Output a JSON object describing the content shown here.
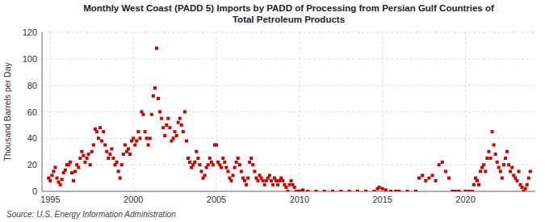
{
  "chart_data": {
    "type": "scatter",
    "title": "Monthly West Coast (PADD 5) Imports by PADD of Processing from Persian Gulf Countries of\nTotal Petroleum Products",
    "y_label": "Thousand Barrels per Day",
    "annotations": [
      "Source: U.S. Energy Information Administration"
    ],
    "color": "#cc0000",
    "marker": "square",
    "grid": true,
    "xlim": [
      1994.5,
      2024.2
    ],
    "ylim": [
      0,
      120
    ],
    "xticks": [
      1995,
      2000,
      2005,
      2010,
      2015,
      2020
    ],
    "yticks": [
      0,
      20,
      40,
      60,
      80,
      100,
      120
    ],
    "x": [
      1994.9,
      1995.0,
      1995.1,
      1995.2,
      1995.3,
      1995.4,
      1995.5,
      1995.6,
      1995.7,
      1995.8,
      1995.9,
      1996.0,
      1996.1,
      1996.2,
      1996.3,
      1996.4,
      1996.5,
      1996.6,
      1996.7,
      1996.8,
      1996.9,
      1997.0,
      1997.1,
      1997.2,
      1997.3,
      1997.4,
      1997.5,
      1997.6,
      1997.7,
      1997.8,
      1997.9,
      1998.0,
      1998.1,
      1998.2,
      1998.3,
      1998.4,
      1998.5,
      1998.6,
      1998.7,
      1998.8,
      1998.9,
      1999.0,
      1999.1,
      1999.2,
      1999.3,
      1999.4,
      1999.5,
      1999.6,
      1999.7,
      1999.8,
      1999.9,
      2000.0,
      2000.1,
      2000.2,
      2000.3,
      2000.4,
      2000.5,
      2000.6,
      2000.7,
      2000.8,
      2000.9,
      2001.0,
      2001.1,
      2001.2,
      2001.3,
      2001.4,
      2001.5,
      2001.6,
      2001.7,
      2001.8,
      2001.9,
      2002.0,
      2002.1,
      2002.2,
      2002.3,
      2002.4,
      2002.5,
      2002.6,
      2002.7,
      2002.8,
      2002.9,
      2003.0,
      2003.1,
      2003.2,
      2003.3,
      2003.4,
      2003.5,
      2003.6,
      2003.7,
      2003.8,
      2003.9,
      2004.0,
      2004.1,
      2004.2,
      2004.3,
      2004.4,
      2004.5,
      2004.6,
      2004.7,
      2004.8,
      2004.9,
      2005.0,
      2005.1,
      2005.2,
      2005.3,
      2005.4,
      2005.5,
      2005.6,
      2005.7,
      2005.8,
      2005.9,
      2006.0,
      2006.1,
      2006.2,
      2006.3,
      2006.4,
      2006.5,
      2006.6,
      2006.7,
      2006.8,
      2006.9,
      2007.0,
      2007.1,
      2007.2,
      2007.3,
      2007.4,
      2007.5,
      2007.6,
      2007.7,
      2007.8,
      2007.9,
      2008.0,
      2008.1,
      2008.2,
      2008.3,
      2008.4,
      2008.5,
      2008.6,
      2008.7,
      2008.8,
      2008.9,
      2009.0,
      2009.1,
      2009.2,
      2009.3,
      2009.4,
      2009.5,
      2009.6,
      2009.7,
      2009.8,
      2010.0,
      2010.2,
      2010.5,
      2011.0,
      2011.5,
      2012.0,
      2012.5,
      2013.0,
      2013.5,
      2014.0,
      2014.5,
      2014.7,
      2014.8,
      2015.0,
      2015.2,
      2015.5,
      2015.8,
      2016.0,
      2016.5,
      2017.0,
      2017.2,
      2017.4,
      2017.6,
      2017.8,
      2018.0,
      2018.2,
      2018.4,
      2018.6,
      2018.8,
      2019.0,
      2019.2,
      2019.4,
      2019.6,
      2020.0,
      2020.2,
      2020.4,
      2020.5,
      2020.6,
      2020.7,
      2020.8,
      2020.9,
      2021.0,
      2021.1,
      2021.2,
      2021.3,
      2021.4,
      2021.5,
      2021.6,
      2021.7,
      2021.8,
      2021.9,
      2022.0,
      2022.1,
      2022.2,
      2022.3,
      2022.4,
      2022.5,
      2022.6,
      2022.7,
      2022.8,
      2022.9,
      2023.0,
      2023.1,
      2023.2,
      2023.3,
      2023.4,
      2023.5,
      2023.6,
      2023.7,
      2023.8,
      2023.9
    ],
    "values": [
      10,
      8,
      12,
      15,
      18,
      10,
      7,
      5,
      9,
      14,
      16,
      20,
      20,
      22,
      14,
      8,
      15,
      20,
      18,
      25,
      30,
      27,
      22,
      25,
      28,
      20,
      30,
      35,
      47,
      45,
      40,
      48,
      38,
      45,
      35,
      30,
      25,
      28,
      32,
      25,
      20,
      22,
      15,
      10,
      20,
      28,
      35,
      30,
      32,
      28,
      38,
      40,
      35,
      38,
      45,
      40,
      60,
      58,
      45,
      40,
      35,
      40,
      58,
      72,
      78,
      108,
      70,
      60,
      55,
      48,
      42,
      50,
      55,
      48,
      38,
      40,
      45,
      42,
      52,
      55,
      50,
      45,
      60,
      38,
      25,
      22,
      18,
      20,
      22,
      30,
      25,
      20,
      15,
      10,
      12,
      18,
      20,
      25,
      22,
      20,
      35,
      35,
      22,
      20,
      18,
      25,
      22,
      18,
      15,
      10,
      8,
      12,
      18,
      22,
      25,
      20,
      15,
      10,
      8,
      5,
      10,
      22,
      25,
      20,
      15,
      10,
      8,
      12,
      10,
      8,
      5,
      8,
      10,
      12,
      8,
      5,
      10,
      8,
      5,
      8,
      10,
      8,
      5,
      3,
      0,
      5,
      8,
      5,
      3,
      0,
      0,
      1,
      0,
      0,
      0,
      0,
      0,
      0,
      0,
      0,
      0,
      2,
      3,
      2,
      1,
      0,
      0,
      0,
      0,
      0,
      10,
      12,
      8,
      10,
      12,
      8,
      20,
      22,
      15,
      10,
      0,
      0,
      0,
      0,
      0,
      0,
      5,
      10,
      8,
      5,
      15,
      18,
      20,
      15,
      25,
      30,
      25,
      45,
      35,
      28,
      22,
      18,
      15,
      10,
      20,
      25,
      30,
      20,
      15,
      18,
      12,
      10,
      8,
      15,
      5,
      3,
      0,
      2,
      5,
      10,
      15
    ]
  }
}
